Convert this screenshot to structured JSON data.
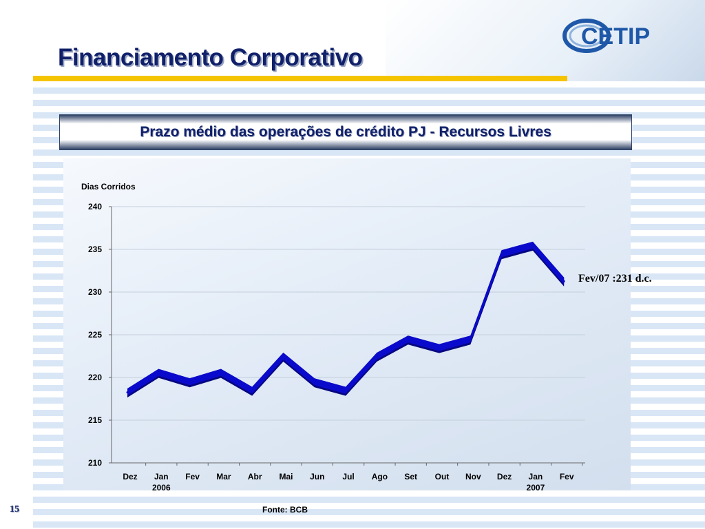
{
  "slide": {
    "title": "Financiamento Corporativo",
    "subtitle": "Prazo médio das operações de crédito PJ - Recursos Livres",
    "page_number": "15",
    "source": "Fonte: BCB",
    "logo_text": "CETIP"
  },
  "colors": {
    "title": "#10206a",
    "accent_rule": "#f5c400",
    "series": "#0a0acc",
    "series_shadow": "#060680"
  },
  "chart_data": {
    "type": "line",
    "title": "Prazo médio das operações de crédito PJ - Recursos Livres",
    "ylabel": "Dias Corridos",
    "xlabel": "",
    "categories": [
      "Dez",
      "Jan",
      "Fev",
      "Mar",
      "Abr",
      "Mai",
      "Jun",
      "Jul",
      "Ago",
      "Set",
      "Out",
      "Nov",
      "Dez",
      "Jan",
      "Fev"
    ],
    "year_labels": [
      {
        "index": 1,
        "label": "2006"
      },
      {
        "index": 13,
        "label": "2007"
      }
    ],
    "series": [
      {
        "values": [
          218.5,
          220.8,
          219.7,
          220.8,
          218.7,
          222.7,
          219.7,
          218.7,
          222.7,
          224.7,
          223.7,
          224.7,
          234.7,
          235.7,
          231.5
        ]
      }
    ],
    "ylim": [
      210,
      240
    ],
    "yticks": [
      210,
      215,
      220,
      225,
      230,
      235,
      240
    ],
    "grid": true,
    "legend": "none",
    "annotation": "Fev/07 :231 d.c."
  }
}
